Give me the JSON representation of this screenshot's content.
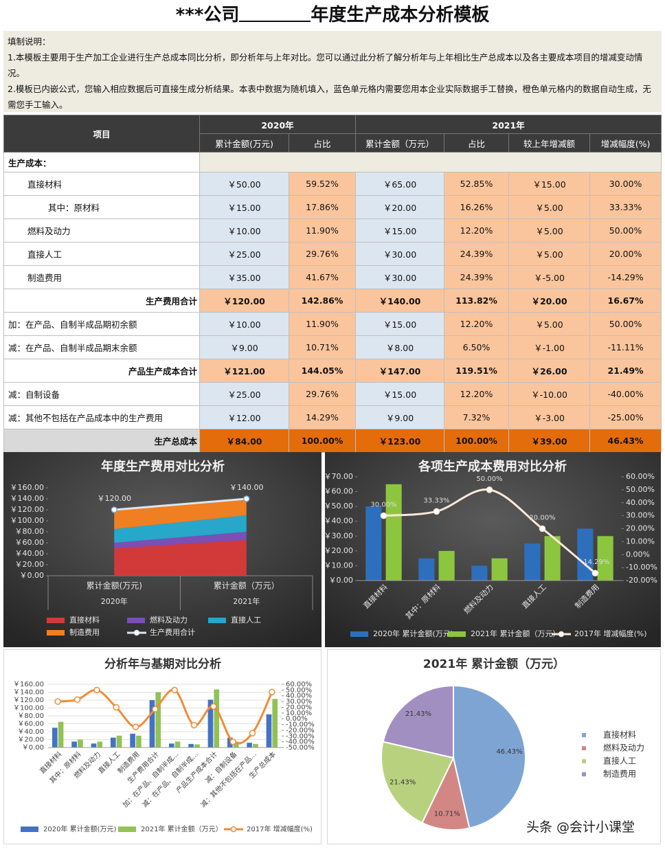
{
  "header": {
    "title_prefix": "***公司",
    "title_suffix": "年度生产成本分析模板"
  },
  "instructions": {
    "heading": "填制说明：",
    "lines": [
      "1.本模板主要用于生产加工企业进行生产总成本同比分析，即分析年与上年对比。您可以通过此分析了解分析年与上年相比生产总成本以及各主要成本项目的增减变动情况。",
      "2.模板已内嵌公式，您输入相应数据后可直接生成分析结果。本表中数据为随机填入，蓝色单元格内需要您用本企业实际数据手工替换，橙色单元格内的数据自动生成，无需您手工输入。"
    ]
  },
  "table": {
    "item_header": "项目",
    "year_headers": [
      "2020年",
      "2021年"
    ],
    "columns": [
      "累计金额(万元)",
      "占比",
      "累计金额（万元）",
      "占比",
      "较上年增减额",
      "增减幅度(%)"
    ],
    "section": "生产成本：",
    "rows": [
      [
        "直接材料",
        "￥50.00",
        "59.52%",
        "￥65.00",
        "52.85%",
        "￥15.00",
        "30.00%"
      ],
      [
        "其中：原材料",
        "￥15.00",
        "17.86%",
        "￥20.00",
        "16.26%",
        "￥5.00",
        "33.33%"
      ],
      [
        "燃料及动力",
        "￥10.00",
        "11.90%",
        "￥15.00",
        "12.20%",
        "￥5.00",
        "50.00%"
      ],
      [
        "直接人工",
        "￥25.00",
        "29.76%",
        "￥30.00",
        "24.39%",
        "￥5.00",
        "20.00%"
      ],
      [
        "制造费用",
        "￥35.00",
        "41.67%",
        "￥30.00",
        "24.39%",
        "￥-5.00",
        "-14.29%"
      ],
      [
        "生产费用合计",
        "￥120.00",
        "142.86%",
        "￥140.00",
        "113.82%",
        "￥20.00",
        "16.67%"
      ],
      [
        "加：在产品、自制半成品期初余额",
        "￥10.00",
        "11.90%",
        "￥15.00",
        "12.20%",
        "￥5.00",
        "50.00%"
      ],
      [
        "减：在产品、自制半成品期末余额",
        "￥9.00",
        "10.71%",
        "￥8.00",
        "6.50%",
        "￥-1.00",
        "-11.11%"
      ],
      [
        "产品生产成本合计",
        "￥121.00",
        "144.05%",
        "￥147.00",
        "119.51%",
        "￥26.00",
        "21.49%"
      ],
      [
        "减：自制设备",
        "￥25.00",
        "29.76%",
        "￥15.00",
        "12.20%",
        "￥-10.00",
        "-40.00%"
      ],
      [
        "减：其他不包括在产品成本中的生产费用",
        "￥12.00",
        "14.29%",
        "￥9.00",
        "7.32%",
        "￥-3.00",
        "-25.00%"
      ],
      [
        "生产总成本",
        "￥84.00",
        "100.00%",
        "￥123.00",
        "100.00%",
        "￥39.00",
        "46.43%"
      ]
    ]
  },
  "chart_data": [
    {
      "type": "area",
      "title": "年度生产费用对比分析",
      "categories": [
        "累计金额(万元)",
        "累计金额（万元）"
      ],
      "category_groups": [
        "2020年",
        "2021年"
      ],
      "series": [
        {
          "name": "直接材料",
          "color": "#d23a3a",
          "values": [
            50,
            65
          ]
        },
        {
          "name": "燃料及动力",
          "color": "#7b4fb5",
          "values": [
            10,
            15
          ]
        },
        {
          "name": "直接人工",
          "color": "#27a7c9",
          "values": [
            25,
            30
          ]
        },
        {
          "name": "制造费用",
          "color": "#f07f22",
          "values": [
            35,
            30
          ]
        },
        {
          "name": "生产费用合计",
          "type": "line",
          "color": "#dbe6f4",
          "values": [
            120,
            140
          ],
          "value_labels": [
            "￥120.00",
            "￥140.00"
          ]
        }
      ],
      "ylim": [
        0,
        160
      ],
      "yticks": [
        {
          "value": 0,
          "label": "￥0.00"
        },
        {
          "value": 20,
          "label": "￥20.00"
        },
        {
          "value": 40,
          "label": "￥40.00"
        },
        {
          "value": 60,
          "label": "￥60.00"
        },
        {
          "value": 80,
          "label": "￥80.00"
        },
        {
          "value": 100,
          "label": "￥100.00"
        },
        {
          "value": 120,
          "label": "￥120.00"
        },
        {
          "value": 140,
          "label": "￥140.00"
        },
        {
          "value": 160,
          "label": "￥160.00"
        }
      ],
      "grid": false
    },
    {
      "type": "bar",
      "title": "各项生产成本费用对比分析",
      "categories": [
        "直接材料",
        "其中：原材料",
        "燃料及动力",
        "直接人工",
        "制造费用"
      ],
      "series": [
        {
          "name": "2020年 累计金额(万元)",
          "color": "#2e6fbd",
          "values": [
            50,
            15,
            10,
            25,
            35
          ]
        },
        {
          "name": "2021年 累计金额（万元）",
          "color": "#8cc63e",
          "values": [
            65,
            20,
            15,
            30,
            30
          ]
        },
        {
          "name": "2017年 增减幅度(%)",
          "type": "line",
          "axis": "y2",
          "color": "#fde9d9",
          "values": [
            30,
            33.33,
            50,
            20,
            -14.29
          ],
          "value_labels": [
            "30.00%",
            "33.33%",
            "50.00%",
            "20.00%",
            "-14.29%"
          ]
        }
      ],
      "ylim": [
        0,
        70
      ],
      "yticks": [
        {
          "value": 0,
          "label": "￥0.00"
        },
        {
          "value": 10,
          "label": "￥10.00"
        },
        {
          "value": 20,
          "label": "￥20.00"
        },
        {
          "value": 30,
          "label": "￥30.00"
        },
        {
          "value": 40,
          "label": "￥40.00"
        },
        {
          "value": 50,
          "label": "￥50.00"
        },
        {
          "value": 60,
          "label": "￥60.00"
        },
        {
          "value": 70,
          "label": "￥70.00"
        }
      ],
      "y2lim": [
        -20,
        60
      ],
      "y2ticks": [
        {
          "value": -20,
          "label": "-20.00%"
        },
        {
          "value": -10,
          "label": "-10.00%"
        },
        {
          "value": 0,
          "label": "0.00%"
        },
        {
          "value": 10,
          "label": "10.00%"
        },
        {
          "value": 20,
          "label": "20.00%"
        },
        {
          "value": 30,
          "label": "30.00%"
        },
        {
          "value": 40,
          "label": "40.00%"
        },
        {
          "value": 50,
          "label": "50.00%"
        },
        {
          "value": 60,
          "label": "60.00%"
        }
      ],
      "grid": false
    },
    {
      "type": "bar",
      "title": "分析年与基期对比分析",
      "categories": [
        "直接材料",
        "其中：原材料",
        "燃料及动力",
        "直接人工",
        "制造费用",
        "生产费用合计",
        "加：在产品、自制半成...",
        "减：在产品、自制半成...",
        "产品生产成本合计",
        "减：自制设备",
        "减：其他不包括在产品...",
        "生产总成本"
      ],
      "series": [
        {
          "name": "2020年 累计金额(万元)",
          "color": "#4472c4",
          "values": [
            50,
            15,
            10,
            25,
            35,
            120,
            10,
            9,
            121,
            25,
            12,
            84
          ]
        },
        {
          "name": "2021年 累计金额（万元）",
          "color": "#92c255",
          "values": [
            65,
            20,
            15,
            30,
            30,
            140,
            15,
            8,
            147,
            15,
            9,
            123
          ]
        },
        {
          "name": "2017年 增减幅度(%)",
          "type": "line",
          "axis": "y2",
          "color": "#f08c36",
          "values": [
            30,
            33.33,
            50,
            20,
            -14.29,
            16.67,
            50,
            -11.11,
            21.49,
            -40,
            -25,
            46.43
          ]
        }
      ],
      "ylim": [
        0,
        160
      ],
      "yticks": [
        {
          "value": 0,
          "label": "￥0.00"
        },
        {
          "value": 20,
          "label": "￥20.00"
        },
        {
          "value": 40,
          "label": "￥40.00"
        },
        {
          "value": 60,
          "label": "￥60.00"
        },
        {
          "value": 80,
          "label": "￥80.00"
        },
        {
          "value": 100,
          "label": "￥100.00"
        },
        {
          "value": 120,
          "label": "￥120.00"
        },
        {
          "value": 140,
          "label": "￥140.00"
        },
        {
          "value": 160,
          "label": "￥160.00"
        }
      ],
      "y2lim": [
        -50,
        60
      ],
      "y2ticks": [
        {
          "value": -50,
          "label": "-50.00%"
        },
        {
          "value": -40,
          "label": "-40.00%"
        },
        {
          "value": -30,
          "label": "-30.00%"
        },
        {
          "value": -20,
          "label": "-20.00%"
        },
        {
          "value": -10,
          "label": "-10.00%"
        },
        {
          "value": 0,
          "label": "0.00%"
        },
        {
          "value": 10,
          "label": "10.00%"
        },
        {
          "value": 20,
          "label": "20.00%"
        },
        {
          "value": 30,
          "label": "30.00%"
        },
        {
          "value": 40,
          "label": "40.00%"
        },
        {
          "value": 50,
          "label": "50.00%"
        },
        {
          "value": 60,
          "label": "60.00%"
        }
      ],
      "grid": true
    },
    {
      "type": "pie",
      "title": "2021年 累计金额（万元）",
      "categories": [
        "直接材料",
        "燃料及动力",
        "直接人工",
        "制造费用"
      ],
      "values": [
        46.43,
        10.71,
        21.43,
        21.43
      ],
      "value_labels": [
        "46.43%",
        "10.71%",
        "21.43%",
        "21.43%"
      ],
      "colors": [
        "#7ea4d3",
        "#d38785",
        "#b8d17f",
        "#a28fc2"
      ]
    }
  ],
  "watermark": "头条 @会计小课堂"
}
